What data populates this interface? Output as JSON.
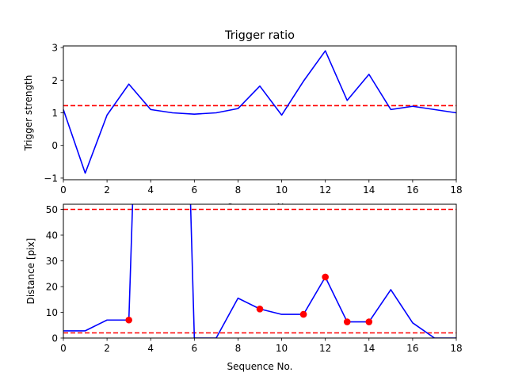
{
  "chart_data": [
    {
      "type": "line",
      "title": "Trigger ratio",
      "xlabel": "Sequence No.",
      "ylabel": "Trigger strength",
      "xlim": [
        0,
        18
      ],
      "ylim": [
        -1.05,
        3.05
      ],
      "xticks": [
        0,
        2,
        4,
        6,
        8,
        10,
        12,
        14,
        16,
        18
      ],
      "yticks": [
        -1,
        0,
        1,
        2,
        3
      ],
      "grid": false,
      "series": [
        {
          "color": "#0000ff",
          "x": [
            0,
            1,
            2,
            3,
            4,
            5,
            6,
            7,
            8,
            9,
            10,
            11,
            12,
            13,
            14,
            15,
            16,
            17,
            18
          ],
          "y": [
            1.1,
            -0.85,
            0.93,
            1.88,
            1.1,
            1.0,
            0.96,
            1.0,
            1.13,
            1.82,
            0.93,
            1.97,
            2.9,
            1.38,
            2.18,
            1.1,
            1.2,
            1.1,
            1.0
          ]
        }
      ],
      "hlines": [
        {
          "y": 1.22,
          "color": "#ff0000",
          "style": "dashed"
        }
      ]
    },
    {
      "type": "line",
      "title": "",
      "xlabel": "Sequence No.",
      "ylabel": "Distance [pix]",
      "xlim": [
        0,
        18
      ],
      "ylim": [
        0,
        52
      ],
      "xticks": [
        0,
        2,
        4,
        6,
        8,
        10,
        12,
        14,
        16,
        18
      ],
      "yticks": [
        0,
        10,
        20,
        30,
        40,
        50
      ],
      "grid": false,
      "series": [
        {
          "color": "#0000ff",
          "x": [
            0,
            1,
            2,
            3,
            3.2,
            5.8,
            6,
            7,
            8,
            9,
            10,
            11,
            12,
            13,
            14,
            15,
            16,
            17,
            18
          ],
          "y": [
            2.8,
            2.8,
            7,
            7,
            60,
            60,
            0,
            0,
            15.5,
            11.3,
            9.2,
            9.2,
            23.7,
            6.3,
            6.3,
            18.8,
            5.9,
            0,
            0
          ]
        }
      ],
      "markers": {
        "color": "#ff0000",
        "x": [
          3,
          9,
          11,
          12,
          13,
          14
        ],
        "y": [
          7,
          11.3,
          9.2,
          23.7,
          6.3,
          6.3
        ]
      },
      "hlines": [
        {
          "y": 50,
          "color": "#ff0000",
          "style": "dashed"
        },
        {
          "y": 2,
          "color": "#ff0000",
          "style": "dashed"
        }
      ]
    }
  ]
}
